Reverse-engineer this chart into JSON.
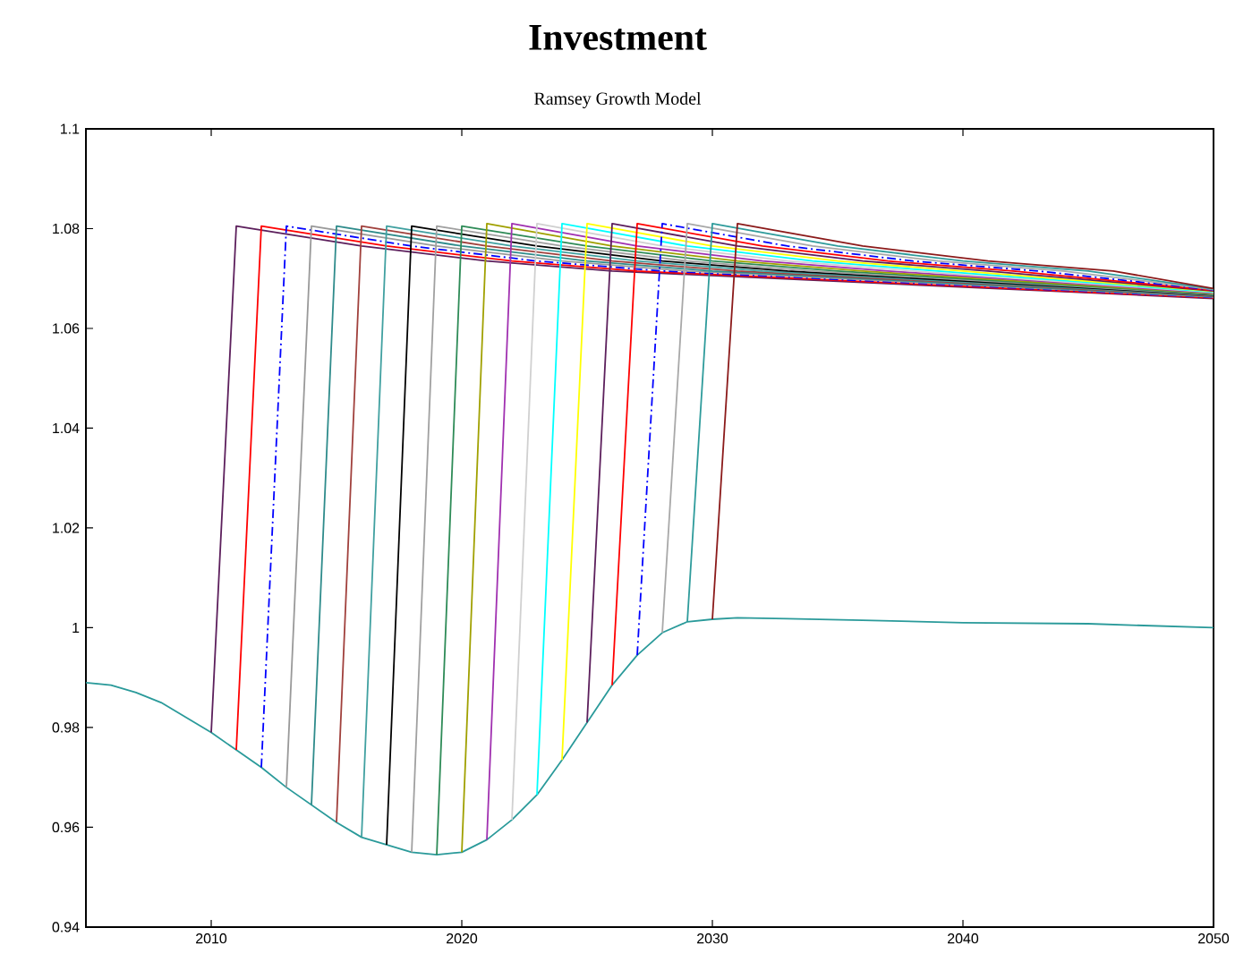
{
  "chart_data": {
    "type": "line",
    "title": "Investment",
    "subtitle": "Ramsey Growth Model",
    "xlim": [
      2005,
      2050
    ],
    "xticks": [
      2010,
      2020,
      2030,
      2040,
      2050
    ],
    "ylim": [
      0.94,
      1.1
    ],
    "yticks": [
      0.94,
      0.96,
      0.98,
      1,
      1.02,
      1.04,
      1.06,
      1.08,
      1.1
    ],
    "line_style": "solid",
    "series": [
      {
        "color": "#2a9a9a",
        "x": [
          2005,
          2006,
          2007,
          2008,
          2009,
          2010,
          2011,
          2012,
          2013,
          2014,
          2015,
          2016,
          2017,
          2018,
          2019,
          2020,
          2021,
          2022,
          2023,
          2024,
          2025,
          2026,
          2027,
          2028,
          2029,
          2030,
          2031,
          2033,
          2036,
          2040,
          2045,
          2050
        ],
        "values": [
          0.989,
          0.9885,
          0.987,
          0.985,
          0.982,
          0.979,
          0.9755,
          0.972,
          0.968,
          0.9645,
          0.961,
          0.958,
          0.9565,
          0.955,
          0.9545,
          0.955,
          0.9575,
          0.9615,
          0.9665,
          0.9735,
          0.981,
          0.9885,
          0.9945,
          0.999,
          1.0012,
          1.0017,
          1.002,
          1.0018,
          1.0015,
          1.001,
          1.0008,
          1.0
        ]
      },
      {
        "color": "#5c1f5c",
        "x": [
          2010,
          2011,
          2016,
          2021,
          2026,
          2050
        ],
        "values": [
          0.979,
          1.0805,
          1.0765,
          1.0735,
          1.0715,
          1.066
        ]
      },
      {
        "color": "#ff0000",
        "x": [
          2011,
          2012,
          2017,
          2022,
          2027,
          2050
        ],
        "values": [
          0.9755,
          1.0805,
          1.0765,
          1.0735,
          1.0715,
          1.0661
        ]
      },
      {
        "color": "#0000ff",
        "line_style": "dashed",
        "x": [
          2012,
          2013,
          2018,
          2023,
          2028,
          2050
        ],
        "values": [
          0.972,
          1.0805,
          1.0765,
          1.0735,
          1.0715,
          1.0662
        ]
      },
      {
        "color": "#999999",
        "x": [
          2013,
          2014,
          2019,
          2024,
          2029,
          2050
        ],
        "values": [
          0.968,
          1.0805,
          1.0765,
          1.0735,
          1.0715,
          1.0663
        ]
      },
      {
        "color": "#2e8b8b",
        "x": [
          2014,
          2015,
          2020,
          2025,
          2030,
          2050
        ],
        "values": [
          0.9645,
          1.0805,
          1.0765,
          1.0735,
          1.0715,
          1.0664
        ]
      },
      {
        "color": "#a0403c",
        "x": [
          2015,
          2016,
          2021,
          2026,
          2031,
          2050
        ],
        "values": [
          0.961,
          1.0805,
          1.0765,
          1.0735,
          1.0715,
          1.0665
        ]
      },
      {
        "color": "#40a0a0",
        "x": [
          2016,
          2017,
          2022,
          2027,
          2032,
          2050
        ],
        "values": [
          0.958,
          1.0805,
          1.0765,
          1.0735,
          1.0715,
          1.0666
        ]
      },
      {
        "color": "#000000",
        "x": [
          2017,
          2018,
          2023,
          2028,
          2033,
          2050
        ],
        "values": [
          0.9565,
          1.0805,
          1.0765,
          1.0735,
          1.0715,
          1.0667
        ]
      },
      {
        "color": "#a0a0a0",
        "x": [
          2018,
          2019,
          2024,
          2029,
          2034,
          2050
        ],
        "values": [
          0.955,
          1.0805,
          1.0765,
          1.0735,
          1.0715,
          1.0668
        ]
      },
      {
        "color": "#2e8b57",
        "x": [
          2019,
          2020,
          2025,
          2030,
          2035,
          2050
        ],
        "values": [
          0.9545,
          1.0805,
          1.0765,
          1.0735,
          1.0715,
          1.0669
        ]
      },
      {
        "color": "#a0a000",
        "x": [
          2020,
          2021,
          2026,
          2031,
          2036,
          2050
        ],
        "values": [
          0.955,
          1.081,
          1.0765,
          1.0735,
          1.0715,
          1.067
        ]
      },
      {
        "color": "#a030b0",
        "x": [
          2021,
          2022,
          2027,
          2032,
          2037,
          2050
        ],
        "values": [
          0.9575,
          1.081,
          1.0765,
          1.0735,
          1.0715,
          1.0671
        ]
      },
      {
        "color": "#d0d0d0",
        "x": [
          2022,
          2023,
          2028,
          2033,
          2038,
          2050
        ],
        "values": [
          0.9615,
          1.081,
          1.0765,
          1.0735,
          1.0715,
          1.0672
        ]
      },
      {
        "color": "#00ffff",
        "x": [
          2023,
          2024,
          2029,
          2034,
          2039,
          2050
        ],
        "values": [
          0.9665,
          1.081,
          1.0765,
          1.0735,
          1.0715,
          1.0673
        ]
      },
      {
        "color": "#ffff00",
        "x": [
          2024,
          2025,
          2030,
          2035,
          2040,
          2050
        ],
        "values": [
          0.9735,
          1.081,
          1.0765,
          1.0735,
          1.0715,
          1.0674
        ]
      },
      {
        "color": "#5c1f5c",
        "x": [
          2025,
          2026,
          2031,
          2036,
          2041,
          2050
        ],
        "values": [
          0.981,
          1.081,
          1.0765,
          1.0735,
          1.0715,
          1.0675
        ]
      },
      {
        "color": "#ff0000",
        "x": [
          2026,
          2027,
          2032,
          2037,
          2042,
          2050
        ],
        "values": [
          0.9885,
          1.081,
          1.0765,
          1.0735,
          1.0715,
          1.0676
        ]
      },
      {
        "color": "#0000ff",
        "line_style": "dashed",
        "x": [
          2027,
          2028,
          2033,
          2038,
          2043,
          2050
        ],
        "values": [
          0.9945,
          1.081,
          1.0765,
          1.0735,
          1.0715,
          1.0677
        ]
      },
      {
        "color": "#a8a8a8",
        "x": [
          2028,
          2029,
          2034,
          2039,
          2044,
          2050
        ],
        "values": [
          0.999,
          1.081,
          1.0765,
          1.0735,
          1.0715,
          1.0678
        ]
      },
      {
        "color": "#2e9b9b",
        "x": [
          2029,
          2030,
          2035,
          2040,
          2045,
          2050
        ],
        "values": [
          1.0012,
          1.081,
          1.0765,
          1.0735,
          1.0715,
          1.0679
        ]
      },
      {
        "color": "#8b1a1a",
        "x": [
          2030,
          2031,
          2036,
          2041,
          2046,
          2050
        ],
        "values": [
          1.0017,
          1.081,
          1.0765,
          1.0735,
          1.0715,
          1.068
        ]
      }
    ]
  }
}
